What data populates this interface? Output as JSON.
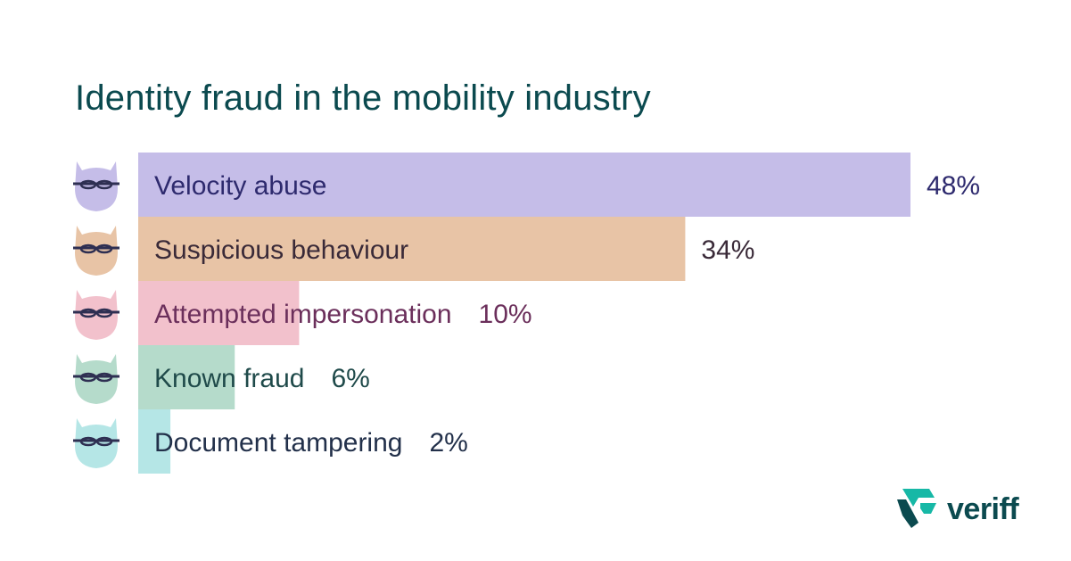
{
  "chart_data": {
    "type": "bar",
    "orientation": "horizontal",
    "title": "Identity fraud in the mobility industry",
    "categories": [
      "Velocity abuse",
      "Suspicious behaviour",
      "Attempted impersonation",
      "Known fraud",
      "Document tampering"
    ],
    "values": [
      48,
      34,
      10,
      6,
      2
    ],
    "value_labels": [
      "48%",
      "34%",
      "10%",
      "6%",
      "2%"
    ],
    "unit": "%",
    "xlim": [
      0,
      48
    ],
    "bar_colors": [
      "#c5bde8",
      "#e8c4a6",
      "#f2c1cc",
      "#b5dbcb",
      "#b5e6e6"
    ],
    "label_colors": [
      "#2e2a6e",
      "#3a2a38",
      "#6b2f5b",
      "#1f4a4a",
      "#22304a"
    ],
    "icon_colors": [
      "#c5bde8",
      "#e8c4a6",
      "#f2c1cc",
      "#b5dbcb",
      "#b5e6e6"
    ],
    "icon": "masked-bandit-icon",
    "grid": false,
    "legend": "none"
  },
  "brand": {
    "name": "veriff",
    "logo_icon": "veriff-logo-icon",
    "text_color": "#0b4a4f",
    "accent": "#17b8a6"
  }
}
